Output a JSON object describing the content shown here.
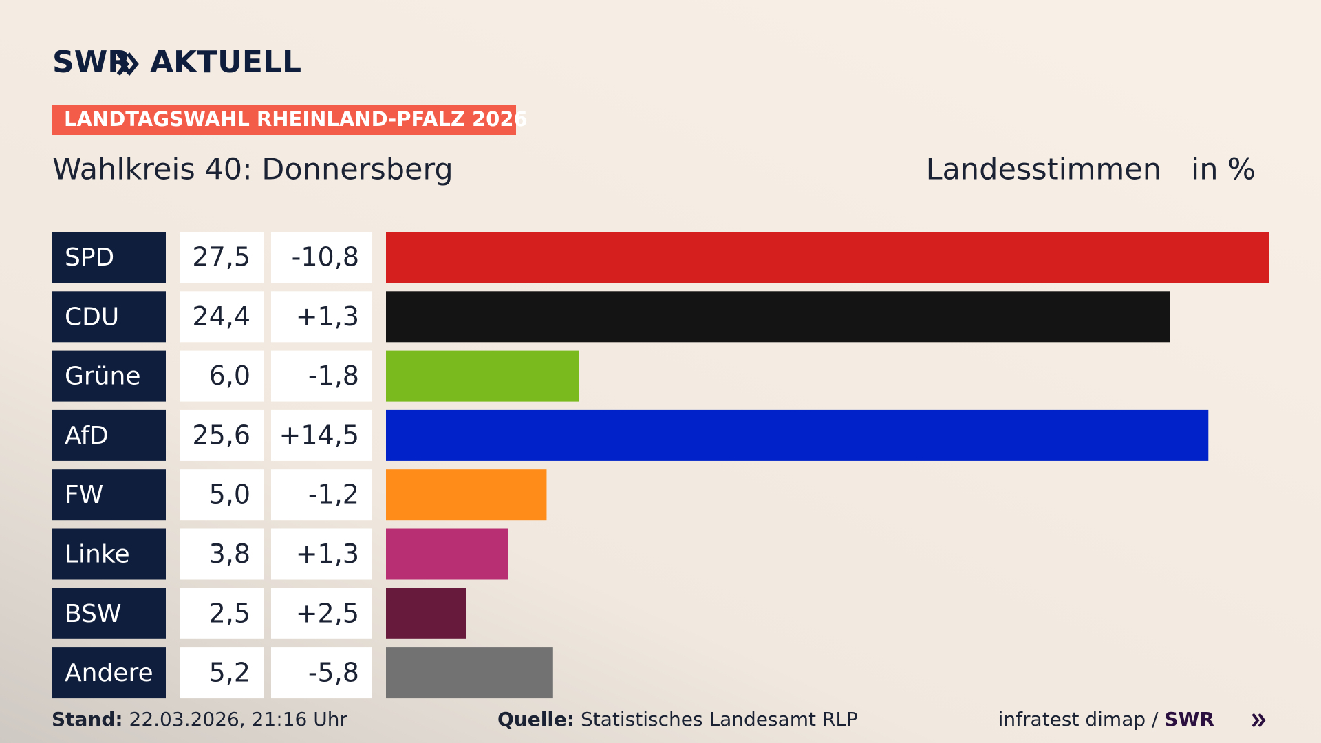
{
  "chart_data": {
    "type": "bar",
    "logo": "SWR",
    "logo_suffix": "AKTUELL",
    "banner": "LANDTAGSWAHL RHEINLAND-PFALZ 2026",
    "title": "Wahlkreis 40: Donnersberg",
    "subtitle": "Landesstimmen",
    "unit": "in %",
    "categories": [
      "SPD",
      "CDU",
      "Grüne",
      "AfD",
      "FW",
      "Linke",
      "BSW",
      "Andere"
    ],
    "values": [
      27.5,
      24.4,
      6.0,
      25.6,
      5.0,
      3.8,
      2.5,
      5.2
    ],
    "value_labels": [
      "27,5",
      "24,4",
      "6,0",
      "25,6",
      "5,0",
      "3,8",
      "2,5",
      "5,2"
    ],
    "changes": [
      -10.8,
      1.3,
      -1.8,
      14.5,
      -1.2,
      1.3,
      2.5,
      -5.8
    ],
    "change_labels": [
      "-10,8",
      "+1,3",
      "-1,8",
      "+14,5",
      "-1,2",
      "+1,3",
      "+2,5",
      "-5,8"
    ],
    "colors": [
      "#d51f1f",
      "#141414",
      "#7aba1e",
      "#0022c8",
      "#ff8c18",
      "#b82f73",
      "#671a3c",
      "#727272"
    ],
    "xlim": [
      0,
      27.5
    ],
    "footer": {
      "stand_label": "Stand:",
      "stand": "22.03.2026, 21:16 Uhr",
      "source_label": "Quelle:",
      "source": "Statistisches Landesamt RLP",
      "credit": "infratest dimap /",
      "credit_logo": "SWR"
    }
  }
}
